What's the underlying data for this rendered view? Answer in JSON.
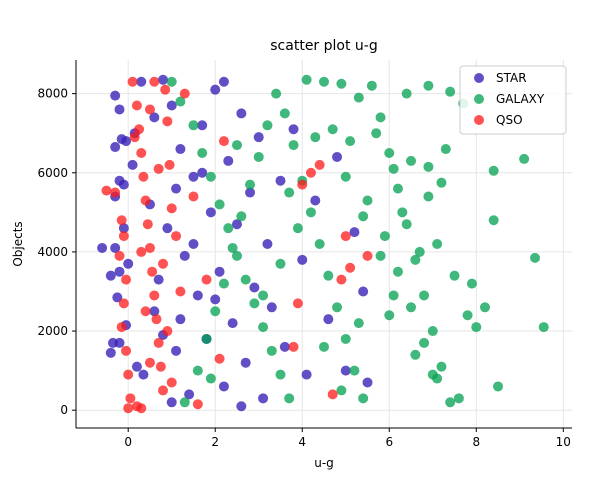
{
  "chart_data": {
    "type": "scatter",
    "title": "scatter plot u-g",
    "xlabel": "u-g",
    "ylabel": "Objects",
    "xlim": [
      -1.2,
      10.2
    ],
    "ylim": [
      -450,
      8850
    ],
    "xticks": [
      0,
      2,
      4,
      6,
      8,
      10
    ],
    "yticks": [
      0,
      2000,
      4000,
      6000,
      8000
    ],
    "grid": true,
    "legend_position": "top-right",
    "series": [
      {
        "name": "STAR",
        "color": "#3a23b8",
        "alpha": 0.8,
        "points": [
          [
            -0.3,
            7950
          ],
          [
            -0.2,
            7600
          ],
          [
            -0.15,
            6850
          ],
          [
            -0.3,
            6650
          ],
          [
            -0.05,
            6800
          ],
          [
            -0.2,
            5800
          ],
          [
            -0.1,
            5700
          ],
          [
            -0.3,
            5400
          ],
          [
            -0.6,
            4100
          ],
          [
            -0.3,
            4100
          ],
          [
            -0.4,
            3400
          ],
          [
            -0.2,
            3500
          ],
          [
            -0.25,
            2850
          ],
          [
            -0.35,
            1700
          ],
          [
            -0.2,
            1700
          ],
          [
            -0.4,
            1450
          ],
          [
            -0.1,
            4600
          ],
          [
            -0.05,
            2150
          ],
          [
            0.0,
            3700
          ],
          [
            0.1,
            6200
          ],
          [
            0.15,
            7000
          ],
          [
            0.2,
            1100
          ],
          [
            0.3,
            8300
          ],
          [
            0.35,
            900
          ],
          [
            0.5,
            5200
          ],
          [
            0.6,
            2500
          ],
          [
            0.7,
            3300
          ],
          [
            0.8,
            8350
          ],
          [
            0.9,
            4600
          ],
          [
            1.0,
            7700
          ],
          [
            1.1,
            1500
          ],
          [
            1.2,
            6600
          ],
          [
            1.3,
            3900
          ],
          [
            1.4,
            400
          ],
          [
            1.5,
            5900
          ],
          [
            1.6,
            2900
          ],
          [
            1.7,
            7200
          ],
          [
            1.8,
            1800
          ],
          [
            1.9,
            5000
          ],
          [
            2.0,
            8100
          ],
          [
            2.1,
            3500
          ],
          [
            2.2,
            600
          ],
          [
            2.3,
            6300
          ],
          [
            2.4,
            2200
          ],
          [
            2.5,
            4700
          ],
          [
            2.6,
            7500
          ],
          [
            2.7,
            1200
          ],
          [
            2.8,
            5500
          ],
          [
            2.9,
            3100
          ],
          [
            3.0,
            6900
          ],
          [
            3.1,
            300
          ],
          [
            3.2,
            4200
          ],
          [
            3.3,
            2600
          ],
          [
            3.5,
            5800
          ],
          [
            3.6,
            1600
          ],
          [
            3.8,
            7100
          ],
          [
            4.0,
            3800
          ],
          [
            4.1,
            900
          ],
          [
            4.3,
            5300
          ],
          [
            4.6,
            2300
          ],
          [
            4.8,
            6400
          ],
          [
            5.0,
            1000
          ],
          [
            5.2,
            4500
          ],
          [
            5.5,
            700
          ],
          [
            5.4,
            3000
          ],
          [
            1.0,
            200
          ],
          [
            1.2,
            2300
          ],
          [
            1.5,
            4200
          ],
          [
            1.7,
            6000
          ],
          [
            2.2,
            8300
          ],
          [
            0.6,
            7400
          ],
          [
            0.8,
            1900
          ],
          [
            1.1,
            5600
          ],
          [
            2.0,
            2800
          ],
          [
            2.6,
            100
          ]
        ]
      },
      {
        "name": "GALAXY",
        "color": "#00a050",
        "alpha": 0.75,
        "points": [
          [
            1.0,
            8300
          ],
          [
            1.2,
            7800
          ],
          [
            1.5,
            7200
          ],
          [
            1.7,
            6500
          ],
          [
            1.9,
            5900
          ],
          [
            2.1,
            5200
          ],
          [
            2.3,
            4600
          ],
          [
            2.5,
            3900
          ],
          [
            2.7,
            3300
          ],
          [
            2.9,
            2700
          ],
          [
            3.1,
            2100
          ],
          [
            3.3,
            1500
          ],
          [
            3.5,
            900
          ],
          [
            3.7,
            300
          ],
          [
            1.3,
            200
          ],
          [
            1.6,
            1000
          ],
          [
            1.8,
            1800
          ],
          [
            2.0,
            2500
          ],
          [
            2.2,
            3200
          ],
          [
            2.4,
            4100
          ],
          [
            2.6,
            4900
          ],
          [
            2.8,
            5700
          ],
          [
            3.0,
            6400
          ],
          [
            3.2,
            7200
          ],
          [
            3.4,
            8000
          ],
          [
            3.6,
            7500
          ],
          [
            3.8,
            6700
          ],
          [
            4.0,
            5800
          ],
          [
            4.2,
            5000
          ],
          [
            4.4,
            4200
          ],
          [
            4.6,
            3400
          ],
          [
            4.8,
            2600
          ],
          [
            5.0,
            1800
          ],
          [
            5.2,
            1000
          ],
          [
            5.4,
            300
          ],
          [
            5.6,
            8200
          ],
          [
            5.8,
            7400
          ],
          [
            6.0,
            6500
          ],
          [
            6.2,
            5600
          ],
          [
            6.4,
            4700
          ],
          [
            6.6,
            3800
          ],
          [
            6.8,
            2900
          ],
          [
            7.0,
            2000
          ],
          [
            7.2,
            1100
          ],
          [
            7.4,
            200
          ],
          [
            4.1,
            8350
          ],
          [
            4.5,
            8300
          ],
          [
            4.9,
            8250
          ],
          [
            5.3,
            7900
          ],
          [
            5.7,
            7000
          ],
          [
            6.1,
            6100
          ],
          [
            6.5,
            6300
          ],
          [
            6.9,
            6150
          ],
          [
            7.3,
            6600
          ],
          [
            7.7,
            7750
          ],
          [
            6.3,
            5000
          ],
          [
            6.7,
            4000
          ],
          [
            7.1,
            4200
          ],
          [
            7.5,
            3400
          ],
          [
            6.0,
            2400
          ],
          [
            6.6,
            1400
          ],
          [
            7.0,
            900
          ],
          [
            7.6,
            300
          ],
          [
            5.5,
            5300
          ],
          [
            5.9,
            4400
          ],
          [
            6.2,
            3500
          ],
          [
            6.5,
            2600
          ],
          [
            6.8,
            1700
          ],
          [
            7.1,
            800
          ],
          [
            5.1,
            6800
          ],
          [
            4.7,
            7100
          ],
          [
            4.3,
            6900
          ],
          [
            3.9,
            4600
          ],
          [
            3.5,
            3700
          ],
          [
            3.1,
            2900
          ],
          [
            8.0,
            2100
          ],
          [
            8.2,
            2600
          ],
          [
            8.4,
            6050
          ],
          [
            8.4,
            4800
          ],
          [
            8.5,
            600
          ],
          [
            9.1,
            6350
          ],
          [
            9.35,
            3850
          ],
          [
            9.55,
            2100
          ],
          [
            7.8,
            2400
          ],
          [
            7.9,
            3200
          ],
          [
            6.9,
            5400
          ],
          [
            7.2,
            5750
          ],
          [
            6.4,
            8000
          ],
          [
            6.9,
            8200
          ],
          [
            7.4,
            8050
          ],
          [
            5.0,
            5900
          ],
          [
            5.4,
            4900
          ],
          [
            5.8,
            3900
          ],
          [
            6.1,
            2900
          ],
          [
            4.5,
            1600
          ],
          [
            4.9,
            500
          ],
          [
            5.3,
            2200
          ],
          [
            3.7,
            5500
          ],
          [
            2.5,
            6700
          ],
          [
            1.9,
            800
          ]
        ]
      },
      {
        "name": "QSO",
        "color": "#ff1a1a",
        "alpha": 0.75,
        "points": [
          [
            -0.5,
            5550
          ],
          [
            -0.3,
            5500
          ],
          [
            -0.15,
            4800
          ],
          [
            -0.1,
            4400
          ],
          [
            -0.2,
            3900
          ],
          [
            -0.05,
            3300
          ],
          [
            -0.1,
            2700
          ],
          [
            -0.15,
            2100
          ],
          [
            -0.05,
            1500
          ],
          [
            0.0,
            900
          ],
          [
            0.05,
            300
          ],
          [
            0.1,
            8300
          ],
          [
            0.2,
            7700
          ],
          [
            0.25,
            7100
          ],
          [
            0.3,
            6500
          ],
          [
            0.35,
            5900
          ],
          [
            0.4,
            5300
          ],
          [
            0.45,
            4700
          ],
          [
            0.5,
            4100
          ],
          [
            0.55,
            3500
          ],
          [
            0.6,
            2900
          ],
          [
            0.65,
            2300
          ],
          [
            0.7,
            1700
          ],
          [
            0.75,
            1100
          ],
          [
            0.8,
            500
          ],
          [
            0.85,
            8100
          ],
          [
            0.9,
            7300
          ],
          [
            0.95,
            6200
          ],
          [
            1.0,
            5100
          ],
          [
            0.3,
            4000
          ],
          [
            0.4,
            2500
          ],
          [
            0.5,
            1200
          ],
          [
            0.2,
            100
          ],
          [
            0.15,
            6900
          ],
          [
            0.6,
            8300
          ],
          [
            0.7,
            6100
          ],
          [
            0.8,
            3700
          ],
          [
            0.9,
            2000
          ],
          [
            1.0,
            700
          ],
          [
            1.1,
            4400
          ],
          [
            1.2,
            3000
          ],
          [
            1.3,
            8000
          ],
          [
            1.5,
            5400
          ],
          [
            1.8,
            3300
          ],
          [
            2.1,
            1300
          ],
          [
            3.8,
            1600
          ],
          [
            4.7,
            400
          ],
          [
            4.9,
            3300
          ],
          [
            5.1,
            3600
          ],
          [
            5.5,
            3900
          ],
          [
            4.2,
            6000
          ],
          [
            4.0,
            5700
          ],
          [
            5.0,
            4400
          ],
          [
            4.4,
            6200
          ],
          [
            3.9,
            2700
          ],
          [
            0.0,
            50
          ],
          [
            0.3,
            50
          ],
          [
            1.6,
            150
          ],
          [
            2.2,
            6800
          ],
          [
            0.5,
            7600
          ]
        ]
      }
    ]
  }
}
